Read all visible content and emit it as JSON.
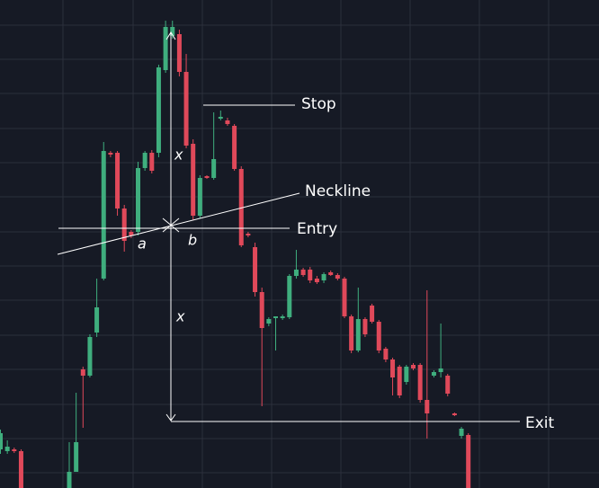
{
  "chart_data": {
    "type": "candlestick",
    "ylim": [
      0,
      543
    ],
    "up_color": "#3fae7e",
    "down_color": "#e0495a",
    "open": [
      43,
      41,
      43,
      41,
      null,
      null,
      null,
      null,
      null,
      null,
      0,
      18,
      132,
      125,
      173,
      233,
      373,
      373,
      311,
      285,
      285,
      356,
      373,
      373,
      465,
      503,
      505,
      463,
      383,
      303,
      347,
      345,
      411,
      409,
      403,
      355,
      283,
      268,
      218,
      183,
      189,
      189,
      190,
      236,
      243,
      243,
      233,
      231,
      240,
      237,
      233,
      191,
      153,
      188,
      203,
      185,
      155,
      143,
      135,
      118,
      137,
      137,
      98,
      125,
      129,
      125,
      83,
      58,
      59
    ],
    "high": [
      65,
      53,
      45,
      43,
      null,
      null,
      null,
      null,
      null,
      null,
      51,
      106,
      135,
      171,
      233,
      385,
      375,
      375,
      315,
      287,
      363,
      375,
      376,
      471,
      520,
      520,
      510,
      483,
      388,
      348,
      348,
      418,
      420,
      412,
      405,
      358,
      285,
      273,
      223,
      190,
      191,
      193,
      238,
      265,
      245,
      246,
      236,
      240,
      242,
      239,
      235,
      193,
      223,
      190,
      205,
      187,
      157,
      145,
      137,
      137,
      139,
      139,
      220,
      131,
      183,
      127,
      84,
      68,
      61
    ],
    "low": [
      38,
      38,
      39,
      0,
      null,
      null,
      null,
      null,
      null,
      null,
      0,
      18,
      67,
      123,
      168,
      231,
      368,
      303,
      263,
      278,
      281,
      353,
      350,
      368,
      462,
      500,
      458,
      378,
      298,
      300,
      344,
      343,
      409,
      403,
      353,
      268,
      279,
      213,
      91,
      180,
      153,
      187,
      188,
      233,
      235,
      228,
      227,
      228,
      236,
      231,
      189,
      150,
      151,
      168,
      183,
      150,
      140,
      103,
      100,
      115,
      131,
      95,
      55,
      123,
      123,
      102,
      80,
      55,
      0
    ],
    "close": [
      61,
      46,
      41,
      0,
      null,
      null,
      null,
      null,
      null,
      null,
      18,
      51,
      125,
      168,
      201,
      375,
      371,
      311,
      275,
      281,
      356,
      373,
      353,
      468,
      513,
      513,
      463,
      381,
      303,
      345,
      345,
      366,
      413,
      405,
      355,
      270,
      281,
      218,
      178,
      188,
      191,
      191,
      236,
      243,
      237,
      231,
      229,
      238,
      237,
      233,
      191,
      153,
      188,
      171,
      185,
      153,
      143,
      123,
      103,
      135,
      133,
      98,
      83,
      129,
      133,
      105,
      81,
      66,
      0
    ],
    "annotations": [
      "Stop",
      "Neckline",
      "Entry",
      "Exit",
      "x",
      "x",
      "a",
      "b"
    ]
  }
}
